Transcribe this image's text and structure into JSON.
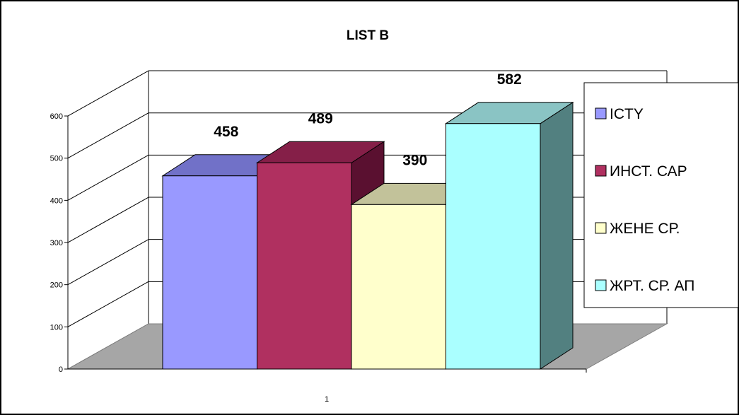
{
  "chart_data": {
    "type": "bar",
    "title": "LIST B",
    "categories": [
      "1"
    ],
    "series": [
      {
        "name": "ICTY",
        "values": [
          458
        ],
        "color": "#9999ff",
        "top_color": "#7171c8",
        "side_color": "#5c5ca8"
      },
      {
        "name": "ИНСТ. САР",
        "values": [
          489
        ],
        "color": "#b03060",
        "top_color": "#851f48",
        "side_color": "#5a1030"
      },
      {
        "name": "ЖЕНЕ СР.",
        "values": [
          390
        ],
        "color": "#ffffcc",
        "top_color": "#c2c29a",
        "side_color": "#a8a880"
      },
      {
        "name": "ЖРТ. СР. АП",
        "values": [
          582
        ],
        "color": "#aaffff",
        "top_color": "#8ac4c4",
        "side_color": "#528080"
      }
    ],
    "yticks": [
      "0",
      "100",
      "200",
      "300",
      "400",
      "500",
      "600"
    ],
    "ylim": [
      0,
      600
    ],
    "xlabel": "",
    "ylabel": "",
    "grid": true,
    "legend_position": "right",
    "floor_color": "#a6a6a6"
  }
}
